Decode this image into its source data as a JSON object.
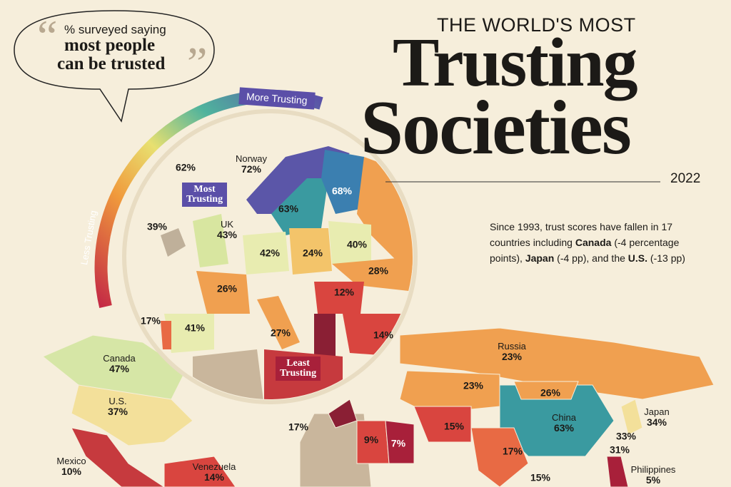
{
  "bubble": {
    "line1": "% surveyed saying",
    "line2": "most people",
    "line3": "can be trusted"
  },
  "scale": {
    "top": "More Trusting",
    "bottom": "Less Trusting"
  },
  "header": {
    "kicker": "THE WORLD'S MOST",
    "title1": "Trusting",
    "title2": "Societies",
    "year": "2022"
  },
  "note": {
    "text1": "Since 1993, trust scores have fallen in 17 countries including",
    "bold1": "Canada",
    "text2": "(-4 percentage points),",
    "bold2": "Japan",
    "text3": "(-4 pp), and the",
    "bold3": "U.S.",
    "text4": "(-13 pp)"
  },
  "badges": {
    "most": [
      "Most",
      "Trusting"
    ],
    "least": [
      "Least",
      "Trusting"
    ]
  },
  "countries": [
    {
      "value": "62%"
    },
    {
      "name": "Norway",
      "value": "72%"
    },
    {
      "value": "68%"
    },
    {
      "value": "63%"
    },
    {
      "value": "39%"
    },
    {
      "name": "UK",
      "value": "43%"
    },
    {
      "value": "42%"
    },
    {
      "value": "24%"
    },
    {
      "value": "40%"
    },
    {
      "value": "28%"
    },
    {
      "value": "26%"
    },
    {
      "value": "12%"
    },
    {
      "value": "17%"
    },
    {
      "value": "41%"
    },
    {
      "value": "27%"
    },
    {
      "value": "14%"
    },
    {
      "name": "Canada",
      "value": "47%"
    },
    {
      "name": "U.S.",
      "value": "37%"
    },
    {
      "name": "Russia",
      "value": "23%"
    },
    {
      "value": "23%"
    },
    {
      "value": "26%"
    },
    {
      "name": "China",
      "value": "63%"
    },
    {
      "name": "Japan",
      "value": "34%"
    },
    {
      "value": "33%"
    },
    {
      "value": "31%"
    },
    {
      "name": "Philippines",
      "value": "5%"
    },
    {
      "name": "Mexico",
      "value": "10%"
    },
    {
      "name": "Venezuela",
      "value": "14%"
    },
    {
      "value": "17%"
    },
    {
      "value": "9%"
    },
    {
      "value": "7%"
    },
    {
      "value": "15%"
    },
    {
      "value": "17%"
    },
    {
      "value": "15%"
    }
  ]
}
